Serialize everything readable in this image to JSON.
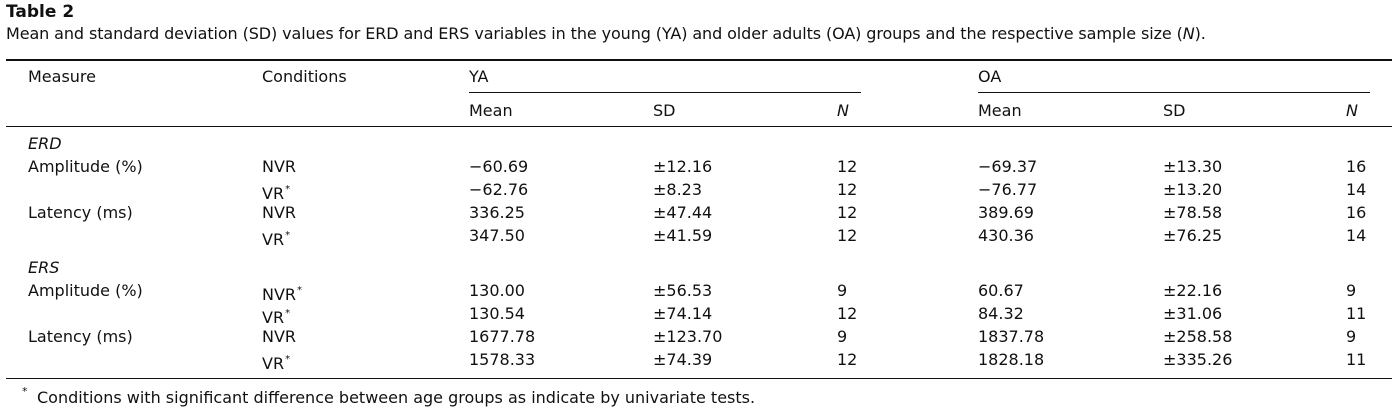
{
  "table": {
    "title": "Table 2",
    "caption_parts": [
      "Mean and standard deviation (SD) values for ERD and ERS variables in the young (YA) and older adults (OA) groups and the respective sample size (",
      "N",
      ")."
    ],
    "headers": {
      "measure": "Measure",
      "conditions": "Conditions",
      "group_ya": "YA",
      "group_oa": "OA",
      "mean": "Mean",
      "sd": "SD",
      "n": "N"
    },
    "sections": [
      {
        "label": "ERD",
        "rows": [
          {
            "measure": "Amplitude (%)",
            "condition": "NVR",
            "star": "",
            "ya_mean": "−60.69",
            "ya_sd": "±12.16",
            "ya_n": "12",
            "oa_mean": "−69.37",
            "oa_sd": "±13.30",
            "oa_n": "16"
          },
          {
            "measure": "",
            "condition": "VR",
            "star": "*",
            "ya_mean": "−62.76",
            "ya_sd": "±8.23",
            "ya_n": "12",
            "oa_mean": "−76.77",
            "oa_sd": "±13.20",
            "oa_n": "14"
          },
          {
            "measure": "Latency (ms)",
            "condition": "NVR",
            "star": "",
            "ya_mean": "336.25",
            "ya_sd": "±47.44",
            "ya_n": "12",
            "oa_mean": "389.69",
            "oa_sd": "±78.58",
            "oa_n": "16"
          },
          {
            "measure": "",
            "condition": "VR",
            "star": "*",
            "ya_mean": "347.50",
            "ya_sd": "±41.59",
            "ya_n": "12",
            "oa_mean": "430.36",
            "oa_sd": "±76.25",
            "oa_n": "14"
          }
        ]
      },
      {
        "label": "ERS",
        "rows": [
          {
            "measure": "Amplitude (%)",
            "condition": "NVR",
            "star": "*",
            "ya_mean": "130.00",
            "ya_sd": "±56.53",
            "ya_n": "9",
            "oa_mean": "60.67",
            "oa_sd": "±22.16",
            "oa_n": "9"
          },
          {
            "measure": "",
            "condition": "VR",
            "star": "*",
            "ya_mean": "130.54",
            "ya_sd": "±74.14",
            "ya_n": "12",
            "oa_mean": "84.32",
            "oa_sd": "±31.06",
            "oa_n": "11"
          },
          {
            "measure": "Latency (ms)",
            "condition": "NVR",
            "star": "",
            "ya_mean": "1677.78",
            "ya_sd": "±123.70",
            "ya_n": "9",
            "oa_mean": "1837.78",
            "oa_sd": "±258.58",
            "oa_n": "9"
          },
          {
            "measure": "",
            "condition": "VR",
            "star": "*",
            "ya_mean": "1578.33",
            "ya_sd": "±74.39",
            "ya_n": "12",
            "oa_mean": "1828.18",
            "oa_sd": "±335.26",
            "oa_n": "11"
          }
        ]
      }
    ],
    "footnote": {
      "marker": "*",
      "text": "Conditions with significant difference between age groups as indicate by univariate tests."
    }
  }
}
